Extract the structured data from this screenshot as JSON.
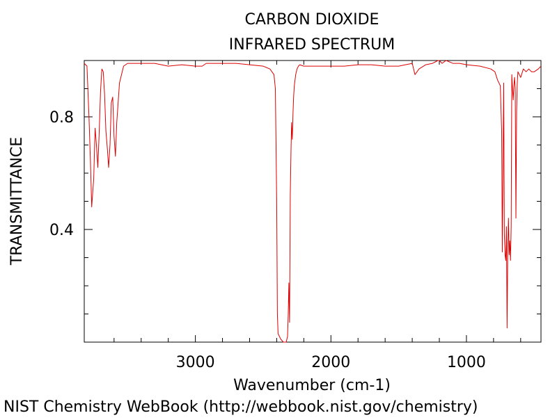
{
  "chart_data": {
    "type": "line",
    "title": "CARBON DIOXIDE",
    "subtitle": "INFRARED SPECTRUM",
    "xlabel": "Wavenumber (cm-1)",
    "ylabel": "TRANSMITTANCE",
    "xlim": [
      3820,
      450
    ],
    "ylim": [
      0.0,
      1.0
    ],
    "x_ticks": [
      3000,
      2000,
      1000
    ],
    "x_tick_labels": [
      "3000",
      "2000",
      "1000"
    ],
    "x_minor_ticks": [
      3600,
      3400,
      3200,
      2800,
      2600,
      2400,
      2200,
      1800,
      1600,
      1400,
      1200,
      800,
      600
    ],
    "y_ticks": [
      0.8,
      0.4
    ],
    "y_tick_labels": [
      "0.8",
      "0.4"
    ],
    "y_minor_ticks": [
      0.1,
      0.2,
      0.3,
      0.5,
      0.6,
      0.7,
      0.9
    ],
    "grid": false,
    "colors": {
      "series": "#dd0000",
      "axes": "#000000"
    },
    "series": [
      {
        "x": [
          3820,
          3800,
          3785,
          3775,
          3765,
          3750,
          3740,
          3730,
          3720,
          3710,
          3700,
          3690,
          3680,
          3670,
          3660,
          3650,
          3640,
          3630,
          3620,
          3610,
          3600,
          3590,
          3580,
          3560,
          3530,
          3500,
          3400,
          3300,
          3200,
          3100,
          3000,
          2950,
          2920,
          2900,
          2850,
          2800,
          2700,
          2600,
          2500,
          2450,
          2420,
          2410,
          2400,
          2395,
          2390,
          2370,
          2350,
          2330,
          2320,
          2315,
          2310,
          2305,
          2300,
          2295,
          2290,
          2285,
          2280,
          2275,
          2270,
          2260,
          2250,
          2240,
          2230,
          2200,
          2100,
          2000,
          1900,
          1800,
          1700,
          1600,
          1500,
          1450,
          1400,
          1380,
          1350,
          1300,
          1250,
          1210,
          1200,
          1180,
          1150,
          1100,
          1050,
          1000,
          900,
          820,
          790,
          770,
          750,
          740,
          735,
          725,
          720,
          715,
          710,
          705,
          700,
          695,
          690,
          685,
          680,
          675,
          670,
          665,
          660,
          655,
          650,
          645,
          640,
          635,
          630,
          625,
          620,
          600,
          580,
          560,
          540,
          520,
          500,
          470,
          450
        ],
        "y": [
          0.99,
          0.98,
          0.8,
          0.65,
          0.48,
          0.58,
          0.76,
          0.7,
          0.62,
          0.74,
          0.89,
          0.97,
          0.96,
          0.88,
          0.75,
          0.69,
          0.62,
          0.7,
          0.85,
          0.87,
          0.73,
          0.66,
          0.78,
          0.92,
          0.98,
          0.99,
          0.99,
          0.99,
          0.98,
          0.985,
          0.98,
          0.98,
          0.99,
          0.99,
          0.99,
          0.99,
          0.99,
          0.985,
          0.98,
          0.97,
          0.95,
          0.9,
          0.5,
          0.1,
          0.03,
          0.01,
          0.0,
          0.0,
          0.02,
          0.1,
          0.21,
          0.07,
          0.52,
          0.67,
          0.78,
          0.72,
          0.81,
          0.87,
          0.91,
          0.95,
          0.97,
          0.98,
          0.985,
          0.98,
          0.98,
          0.98,
          0.98,
          0.985,
          0.985,
          0.98,
          0.98,
          0.985,
          0.99,
          0.95,
          0.97,
          0.985,
          0.99,
          1.0,
          1.0,
          0.99,
          1.0,
          0.99,
          0.99,
          0.985,
          0.98,
          0.97,
          0.96,
          0.93,
          0.91,
          0.75,
          0.32,
          0.92,
          0.38,
          0.31,
          0.29,
          0.41,
          0.05,
          0.33,
          0.44,
          0.31,
          0.36,
          0.29,
          0.41,
          0.95,
          0.9,
          0.86,
          0.91,
          0.94,
          0.9,
          0.44,
          0.82,
          0.92,
          0.96,
          0.94,
          0.97,
          0.96,
          0.97,
          0.96,
          0.96,
          0.97,
          0.98
        ]
      }
    ]
  },
  "footer": {
    "credit": "NIST Chemistry WebBook (http://webbook.nist.gov/chemistry)"
  }
}
